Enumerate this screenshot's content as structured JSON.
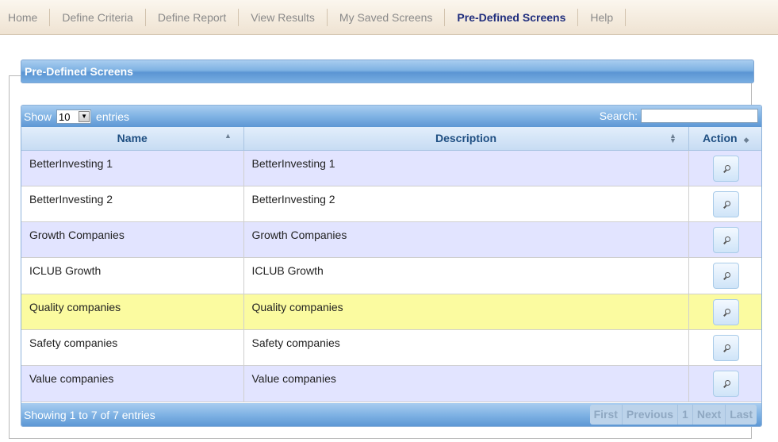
{
  "nav": {
    "items": [
      {
        "label": "Home",
        "active": false
      },
      {
        "label": "Define Criteria",
        "active": false
      },
      {
        "label": "Define Report",
        "active": false
      },
      {
        "label": "View Results",
        "active": false
      },
      {
        "label": "My Saved Screens",
        "active": false
      },
      {
        "label": "Pre-Defined Screens",
        "active": true
      },
      {
        "label": "Help",
        "active": false
      }
    ]
  },
  "section": {
    "title": "Pre-Defined Screens"
  },
  "controls": {
    "show_label": "Show",
    "page_length": "10",
    "entries_label": "entries",
    "search_label": "Search:",
    "search_value": ""
  },
  "table": {
    "columns": [
      "Name",
      "Description",
      "Action"
    ],
    "rows": [
      {
        "name": "BetterInvesting 1",
        "description": "BetterInvesting 1"
      },
      {
        "name": "BetterInvesting 2",
        "description": "BetterInvesting 2"
      },
      {
        "name": "Growth Companies",
        "description": "Growth Companies"
      },
      {
        "name": "ICLUB Growth",
        "description": "ICLUB Growth"
      },
      {
        "name": "Quality companies",
        "description": "Quality companies"
      },
      {
        "name": "Safety companies",
        "description": "Safety companies"
      },
      {
        "name": "Value companies",
        "description": "Value companies"
      }
    ]
  },
  "footer": {
    "info": "Showing 1 to 7 of 7 entries",
    "first": "First",
    "previous": "Previous",
    "page": "1",
    "next": "Next",
    "last": "Last"
  },
  "colors": {
    "header_blue": "#5b95d3",
    "row_odd": "#e2e4ff",
    "row_highlight": "#fbfba0",
    "nav_active": "#1f2d7d"
  },
  "icons": {
    "action": "magnifier-icon",
    "sort": "sort-icon",
    "dropdown": "chevron-down-icon"
  }
}
